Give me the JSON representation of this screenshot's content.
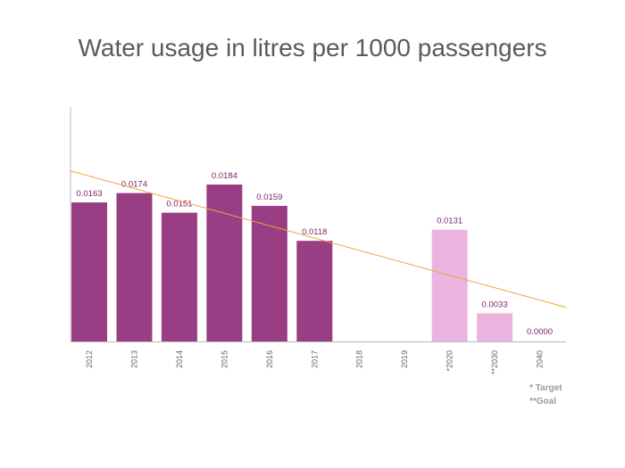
{
  "chart_data": {
    "type": "bar",
    "title": "Water usage in litres per 1000 passengers",
    "categories": [
      "2012",
      "2013",
      "2014",
      "2015",
      "2016",
      "2017",
      "2018",
      "2019",
      "*2020",
      "**2030",
      "2040"
    ],
    "values": [
      0.0163,
      0.0174,
      0.0151,
      0.0184,
      0.0159,
      0.0118,
      null,
      null,
      0.0131,
      0.0033,
      0.0
    ],
    "value_labels": [
      "0.0163",
      "0.0174",
      "0.0151",
      "0.0184",
      "0.0159",
      "0.0118",
      "",
      "",
      "0.0131",
      "0.0033",
      "0.0000"
    ],
    "bar_kind": [
      "actual",
      "actual",
      "actual",
      "actual",
      "actual",
      "actual",
      "none",
      "none",
      "target",
      "target",
      "goal"
    ],
    "ylim": [
      0,
      0.0275
    ],
    "trendline": {
      "start": 0.02,
      "end": 0.004
    },
    "colors": {
      "actual": "#993d85",
      "target": "#ebb4df",
      "label": "#7a1f66",
      "trend": "#f2a33a",
      "axis": "#bbbbbb",
      "tick": "#666666"
    },
    "notes": [
      "* Target",
      "**Goal"
    ],
    "grid": false,
    "legend": "none"
  }
}
